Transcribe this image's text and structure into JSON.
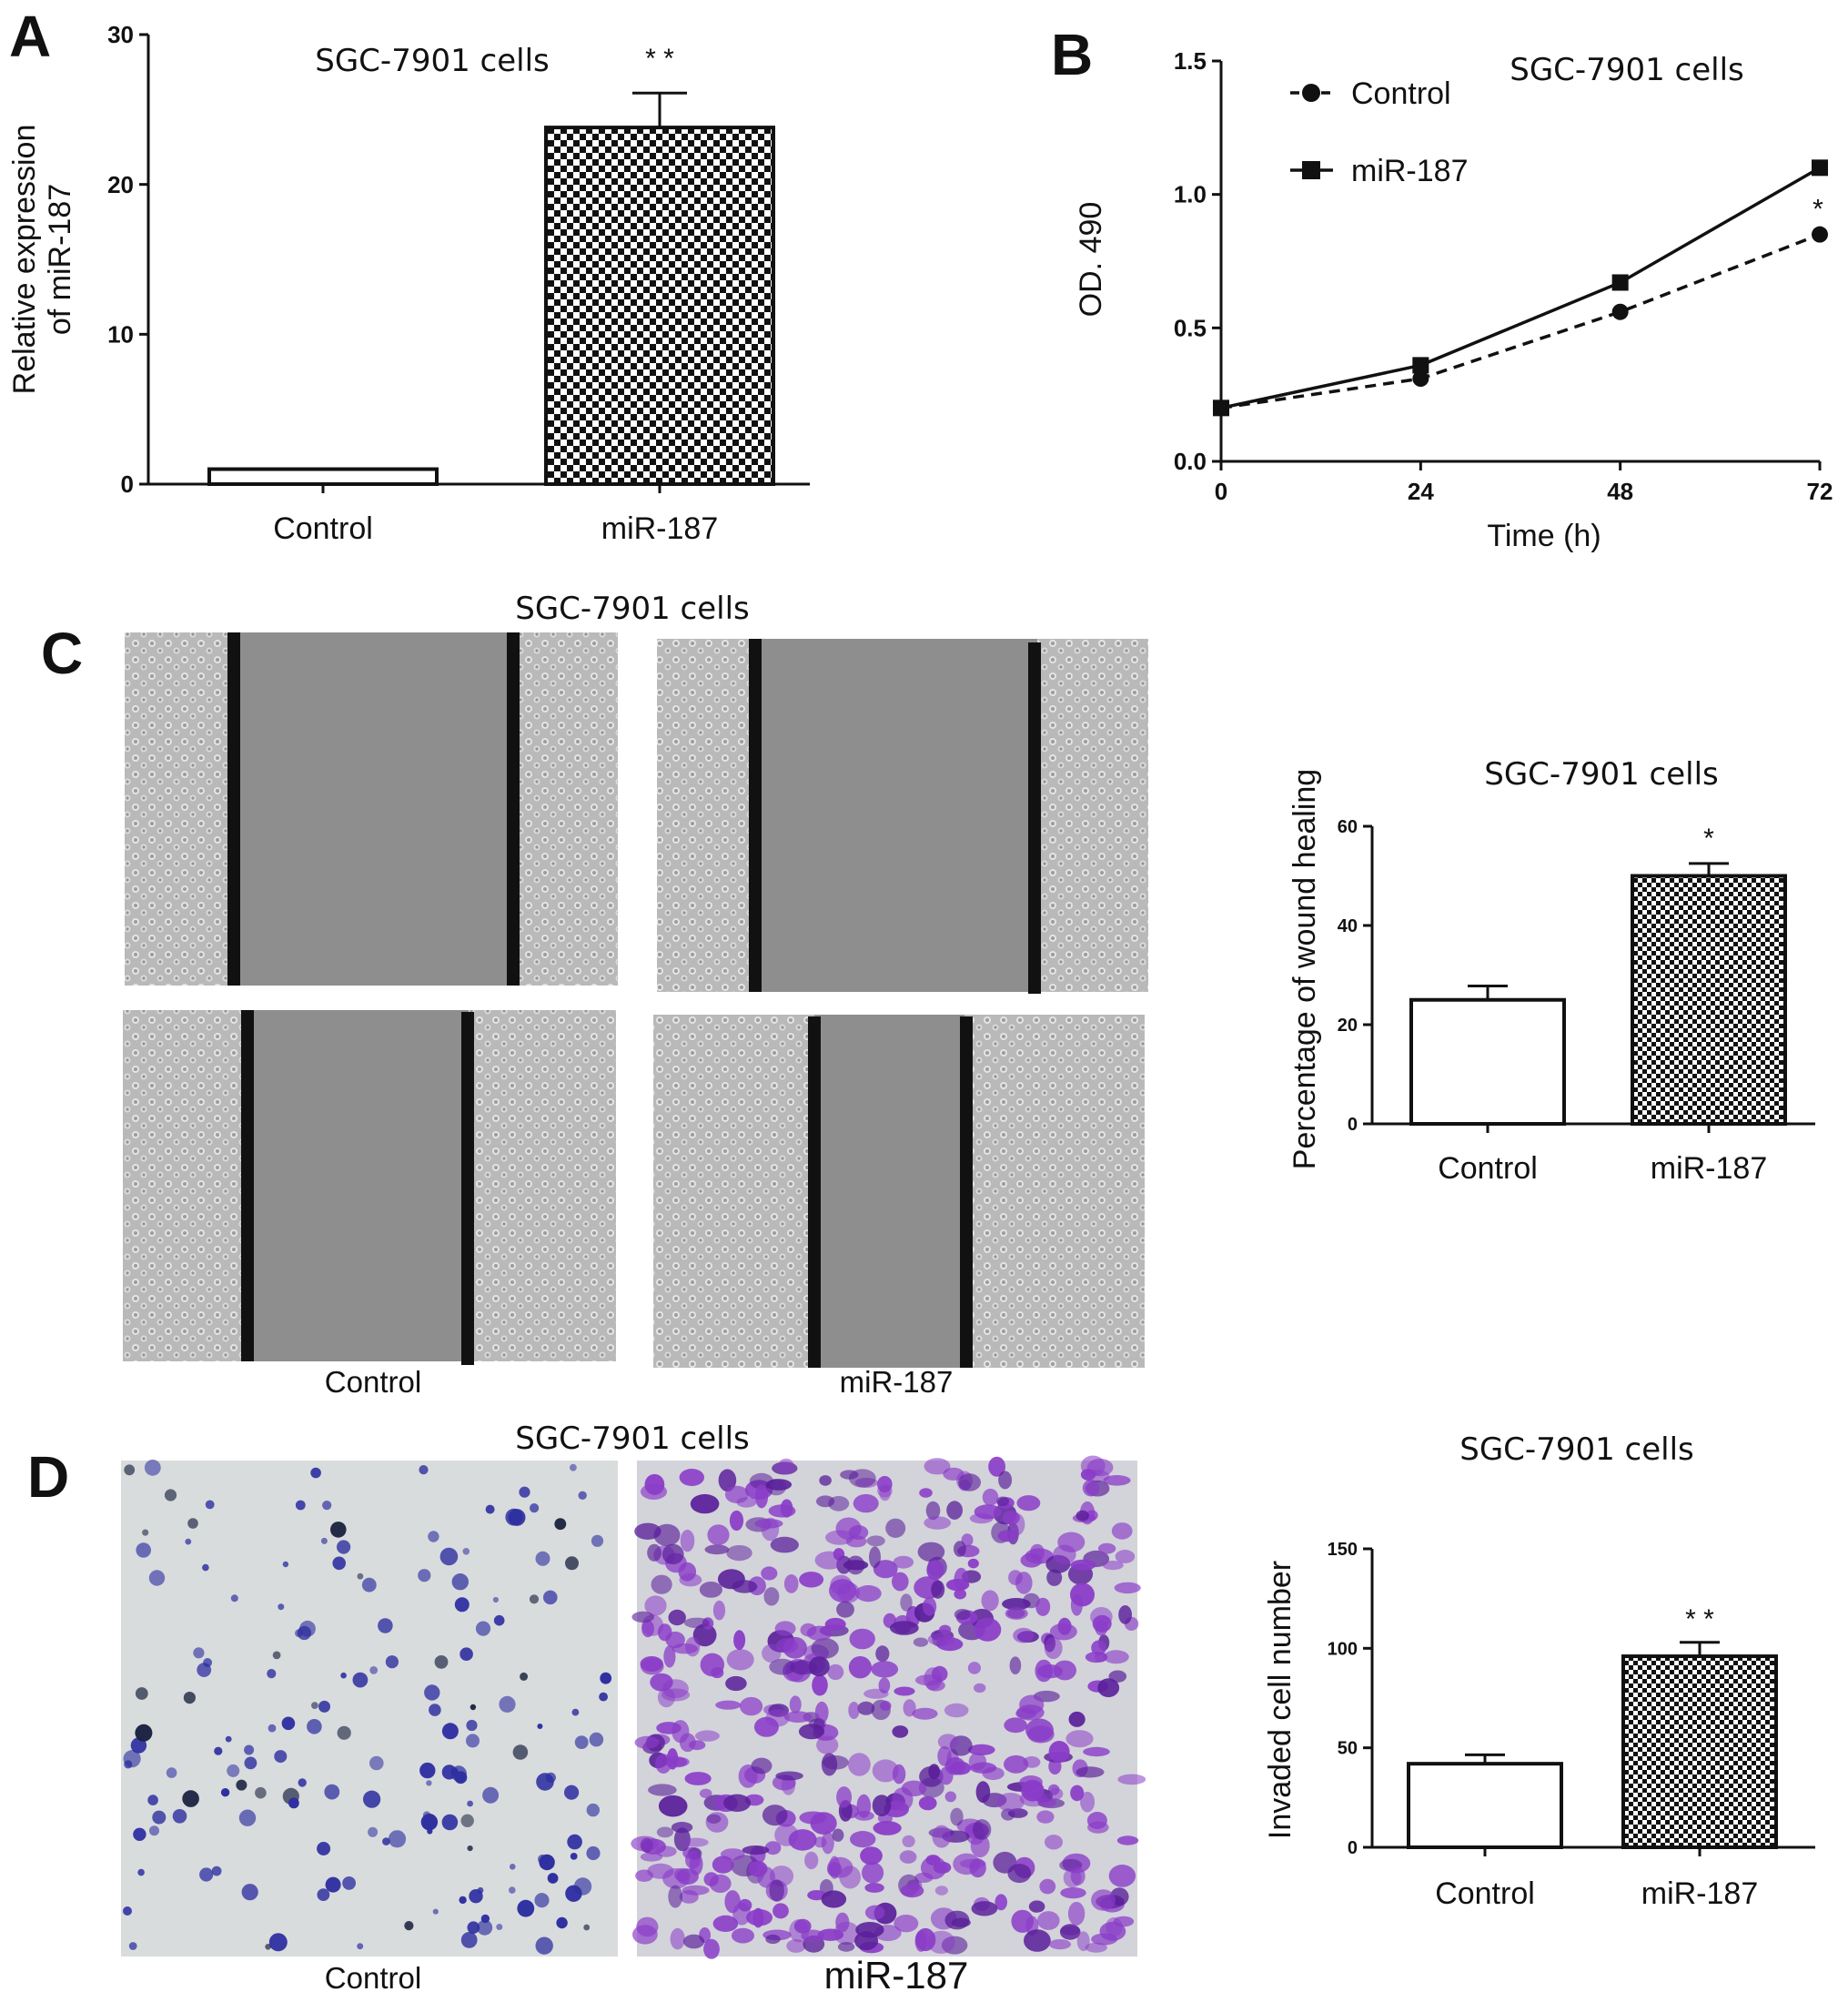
{
  "panels": {
    "A": {
      "letter": "A"
    },
    "B": {
      "letter": "B"
    },
    "C": {
      "letter": "C",
      "micrograph_title": "SGC-7901 cells",
      "image_labels": [
        "Control",
        "miR-187"
      ]
    },
    "D": {
      "letter": "D",
      "micrograph_title": "SGC-7901 cells",
      "image_labels": [
        "Control",
        "miR-187"
      ]
    }
  },
  "colors": {
    "ink": "#111111",
    "control_bar_fill": "#ffffff",
    "checker_dark": "#111111",
    "scratch_gray": "#8a8a8a",
    "cell_texture": "#c8c8c8",
    "transwell_background": "#d9dcdd",
    "control_cells": "#2e2fa0",
    "mir187_cells": "#7a2cb8"
  },
  "chart_data": [
    {
      "id": "A",
      "type": "bar",
      "title": "SGC-7901 cells",
      "xlabel": "",
      "ylabel": "Relative expression of miR-187",
      "ylabel_lines": [
        "Relative expression",
        "of miR-187"
      ],
      "categories": [
        "Control",
        "miR-187"
      ],
      "values": [
        1.0,
        23.8
      ],
      "errors": [
        0,
        2.3
      ],
      "fills": [
        "white",
        "checker"
      ],
      "significance": [
        "",
        "* *"
      ],
      "ylim": [
        0,
        30
      ],
      "yticks": [
        0,
        10,
        20,
        30
      ],
      "grid": false
    },
    {
      "id": "B",
      "type": "line",
      "title": "SGC-7901 cells",
      "xlabel": "Time (h)",
      "ylabel": "OD. 490",
      "x": [
        0,
        24,
        48,
        72
      ],
      "xticks": [
        0,
        24,
        48,
        72
      ],
      "ylim": [
        0,
        1.5
      ],
      "yticks": [
        0.0,
        0.5,
        1.0,
        1.5
      ],
      "series": [
        {
          "name": "Control",
          "values": [
            0.2,
            0.31,
            0.56,
            0.85
          ],
          "marker": "circle",
          "dash": "dashed"
        },
        {
          "name": "miR-187",
          "values": [
            0.2,
            0.36,
            0.67,
            1.1
          ],
          "marker": "square",
          "dash": "solid"
        }
      ],
      "significance": {
        "x": 72,
        "label": "*"
      },
      "legend": "top-left",
      "grid": false
    },
    {
      "id": "C",
      "type": "bar",
      "title": "SGC-7901 cells",
      "xlabel": "",
      "ylabel": "Percentage of wound healing",
      "categories": [
        "Control",
        "miR-187"
      ],
      "values": [
        25,
        50
      ],
      "errors": [
        2.8,
        2.5
      ],
      "fills": [
        "white",
        "checker"
      ],
      "significance": [
        "",
        "*"
      ],
      "ylim": [
        0,
        60
      ],
      "yticks": [
        0,
        20,
        40,
        60
      ],
      "grid": false
    },
    {
      "id": "D",
      "type": "bar",
      "title": "SGC-7901 cells",
      "xlabel": "",
      "ylabel": "Invaded cell number",
      "categories": [
        "Control",
        "miR-187"
      ],
      "values": [
        42,
        96
      ],
      "errors": [
        4.5,
        7
      ],
      "fills": [
        "white",
        "checker"
      ],
      "significance": [
        "",
        "* *"
      ],
      "ylim": [
        0,
        150
      ],
      "yticks": [
        0,
        50,
        100,
        150
      ],
      "grid": false
    }
  ]
}
